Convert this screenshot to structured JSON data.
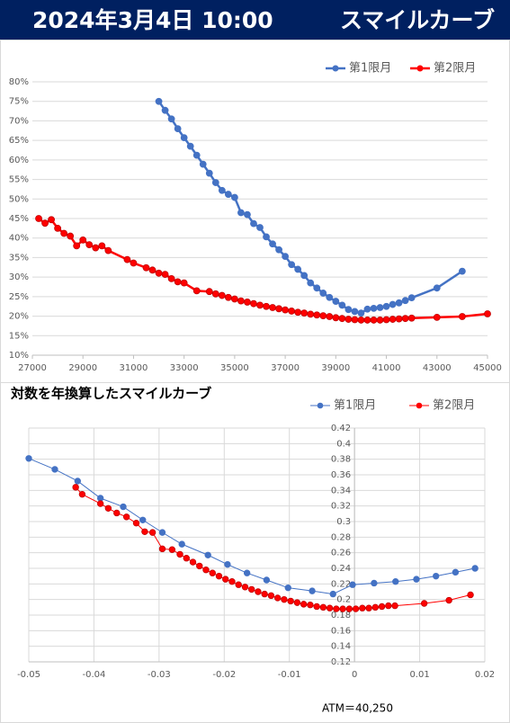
{
  "header": {
    "date": "2024年3月4日 10:00",
    "title": "スマイルカーブ"
  },
  "chart_data": [
    {
      "type": "line",
      "grid": "y",
      "legend": "top-right",
      "xlim": [
        27000,
        45000
      ],
      "xticks": [
        27000,
        29000,
        31000,
        33000,
        35000,
        37000,
        39000,
        41000,
        43000,
        45000
      ],
      "ylim": [
        10,
        80
      ],
      "yticks": [
        {
          "value": 10,
          "label": "10%"
        },
        {
          "value": 15,
          "label": "15%"
        },
        {
          "value": 20,
          "label": "20%"
        },
        {
          "value": 25,
          "label": "25%"
        },
        {
          "value": 30,
          "label": "30%"
        },
        {
          "value": 35,
          "label": "35%"
        },
        {
          "value": 40,
          "label": "40%"
        },
        {
          "value": 45,
          "label": "45%"
        },
        {
          "value": 50,
          "label": "50%"
        },
        {
          "value": 55,
          "label": "55%"
        },
        {
          "value": 60,
          "label": "60%"
        },
        {
          "value": 65,
          "label": "65%"
        },
        {
          "value": 70,
          "label": "70%"
        },
        {
          "value": 75,
          "label": "75%"
        },
        {
          "value": 80,
          "label": "80%"
        }
      ],
      "series": [
        {
          "name": "第1限月",
          "color": "#4472c4",
          "x": [
            32000,
            32250,
            32500,
            32750,
            33000,
            33250,
            33500,
            33750,
            34000,
            34250,
            34500,
            34750,
            35000,
            35250,
            35500,
            35750,
            36000,
            36250,
            36500,
            36750,
            37000,
            37250,
            37500,
            37750,
            38000,
            38250,
            38500,
            38750,
            39000,
            39250,
            39500,
            39750,
            40000,
            40250,
            40500,
            40750,
            41000,
            41250,
            41500,
            41750,
            42000,
            43000,
            44000
          ],
          "values": [
            75,
            72.7,
            70.5,
            68,
            65.7,
            63.5,
            61.2,
            58.9,
            56.6,
            54.2,
            52.2,
            51.2,
            50.4,
            46.5,
            46,
            43.7,
            42.7,
            40.3,
            38.5,
            37,
            35.3,
            33.2,
            32,
            30.4,
            28.5,
            27.2,
            25.9,
            24.8,
            23.8,
            22.8,
            21.7,
            21.2,
            20.8,
            21.8,
            22,
            22.2,
            22.5,
            23,
            23.4,
            24,
            24.7,
            27.2,
            31.5
          ]
        },
        {
          "name": "第2限月",
          "color": "#ff0000",
          "x": [
            27250,
            27500,
            27750,
            28000,
            28250,
            28500,
            28750,
            29000,
            29250,
            29500,
            29750,
            30000,
            30750,
            31000,
            31500,
            31750,
            32000,
            32250,
            32500,
            32750,
            33000,
            33500,
            34000,
            34250,
            34500,
            34750,
            35000,
            35250,
            35500,
            35750,
            36000,
            36250,
            36500,
            36750,
            37000,
            37250,
            37500,
            37750,
            38000,
            38250,
            38500,
            38750,
            39000,
            39250,
            39500,
            39750,
            40000,
            40250,
            40500,
            40750,
            41000,
            41250,
            41500,
            41750,
            42000,
            43000,
            44000,
            45000
          ],
          "values": [
            45,
            43.8,
            44.7,
            42.5,
            41.2,
            40.5,
            38,
            39.5,
            38.3,
            37.5,
            38,
            36.8,
            34.5,
            33.6,
            32.4,
            31.8,
            31,
            30.7,
            29.6,
            28.8,
            28.5,
            26.5,
            26.3,
            25.7,
            25.3,
            24.8,
            24.4,
            23.9,
            23.6,
            23.2,
            22.8,
            22.5,
            22.2,
            21.9,
            21.6,
            21.3,
            21,
            20.8,
            20.5,
            20.3,
            20.1,
            19.9,
            19.6,
            19.4,
            19.2,
            19.1,
            19,
            19,
            19,
            19,
            19.1,
            19.2,
            19.3,
            19.4,
            19.5,
            19.7,
            19.9,
            20.6
          ]
        }
      ]
    },
    {
      "type": "line",
      "title": "対数を年換算したスマイルカーブ",
      "grid": "both",
      "legend": "top-right",
      "annotation": "ATM＝40,250",
      "xlim": [
        -0.05,
        0.02
      ],
      "xticks": [
        -0.05,
        -0.04,
        -0.03,
        -0.02,
        -0.01,
        0,
        0.01,
        0.02
      ],
      "ylim": [
        0.12,
        0.42
      ],
      "yticks": [
        0.12,
        0.14,
        0.16,
        0.18,
        0.2,
        0.22,
        0.24,
        0.26,
        0.28,
        0.3,
        0.32,
        0.34,
        0.36,
        0.38,
        0.4,
        0.42
      ],
      "series": [
        {
          "name": "第1限月",
          "color": "#4472c4",
          "x": [
            -0.05,
            -0.046,
            -0.0425,
            -0.039,
            -0.0355,
            -0.0325,
            -0.0295,
            -0.0265,
            -0.0225,
            -0.0195,
            -0.0165,
            -0.0135,
            -0.0102,
            -0.0065,
            -0.0033,
            -0.0003,
            0.003,
            0.0063,
            0.0095,
            0.0125,
            0.0155,
            0.0185
          ],
          "values": [
            0.381,
            0.367,
            0.352,
            0.33,
            0.319,
            0.302,
            0.286,
            0.271,
            0.257,
            0.245,
            0.234,
            0.225,
            0.215,
            0.211,
            0.207,
            0.219,
            0.221,
            0.223,
            0.226,
            0.23,
            0.235,
            0.24
          ]
        },
        {
          "name": "第2限月",
          "color": "#ff0000",
          "x": [
            -0.0428,
            -0.0418,
            -0.039,
            -0.0378,
            -0.0365,
            -0.035,
            -0.0335,
            -0.0322,
            -0.031,
            -0.0295,
            -0.028,
            -0.0268,
            -0.0258,
            -0.0248,
            -0.0238,
            -0.0228,
            -0.0218,
            -0.0208,
            -0.0198,
            -0.0188,
            -0.0178,
            -0.0168,
            -0.0158,
            -0.0148,
            -0.0138,
            -0.0128,
            -0.0118,
            -0.0108,
            -0.0098,
            -0.0088,
            -0.0078,
            -0.0068,
            -0.0058,
            -0.0048,
            -0.0038,
            -0.0028,
            -0.0018,
            -0.0008,
            0.0002,
            0.0012,
            0.0022,
            0.0032,
            0.0042,
            0.0052,
            0.0062,
            0.0107,
            0.0145,
            0.0178
          ],
          "values": [
            0.344,
            0.335,
            0.323,
            0.317,
            0.311,
            0.306,
            0.298,
            0.287,
            0.286,
            0.265,
            0.264,
            0.258,
            0.253,
            0.248,
            0.243,
            0.238,
            0.234,
            0.23,
            0.226,
            0.223,
            0.219,
            0.216,
            0.213,
            0.21,
            0.207,
            0.205,
            0.202,
            0.2,
            0.198,
            0.196,
            0.194,
            0.193,
            0.191,
            0.19,
            0.189,
            0.188,
            0.188,
            0.188,
            0.188,
            0.189,
            0.189,
            0.19,
            0.191,
            0.192,
            0.192,
            0.195,
            0.199,
            0.206
          ]
        }
      ]
    }
  ]
}
